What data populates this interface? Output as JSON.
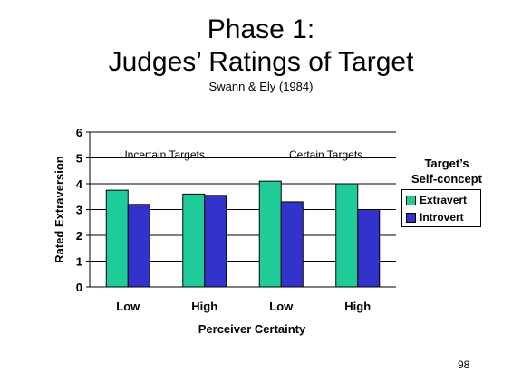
{
  "slide": {
    "title_line1": "Phase 1:",
    "title_line2": "Judges’ Ratings of Target",
    "subtitle": "Swann & Ely (1984)",
    "page_number": "98"
  },
  "chart_data": {
    "type": "bar",
    "categories": [
      "Low",
      "High",
      "Low",
      "High"
    ],
    "series": [
      {
        "name": "Extravert",
        "values": [
          3.75,
          3.6,
          4.1,
          4.0
        ],
        "color": "#1fcc99"
      },
      {
        "name": "Introvert",
        "values": [
          3.2,
          3.55,
          3.3,
          3.0
        ],
        "color": "#3333cc"
      }
    ],
    "xlabel": "Perceiver Certainty",
    "ylabel": "Rated Extraversion",
    "ylim": [
      0,
      6
    ],
    "yticks": [
      "0",
      "1",
      "2",
      "3",
      "4",
      "5",
      "6"
    ],
    "grid": true,
    "legend_title_line1": "Target’s",
    "legend_title_line2": "Self-concept",
    "legend_position": "right",
    "annotations": [
      "Uncertain Targets",
      "Certain Targets"
    ]
  }
}
